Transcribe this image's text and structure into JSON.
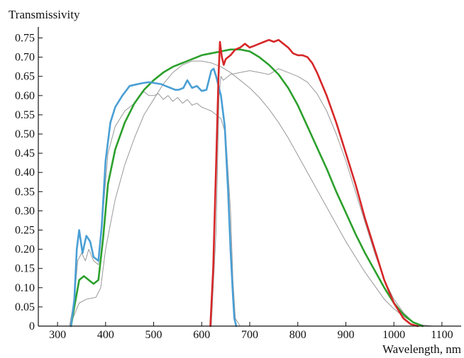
{
  "chart_data": {
    "type": "line",
    "title": "",
    "xlabel": "Wavelength, nm",
    "ylabel": "Transmissivity",
    "xlim": [
      260,
      1140
    ],
    "ylim": [
      0,
      0.775
    ],
    "x_ticks": [
      300,
      400,
      500,
      600,
      700,
      800,
      900,
      1000,
      1100
    ],
    "x_tick_labels": [
      "300",
      "400",
      "500",
      "600",
      "700",
      "800",
      "900",
      "1000",
      "1100"
    ],
    "y_ticks": [
      0,
      0.05,
      0.1,
      0.15,
      0.2,
      0.25,
      0.3,
      0.35,
      0.4,
      0.45,
      0.5,
      0.55,
      0.6,
      0.65,
      0.7,
      0.75
    ],
    "y_tick_labels": [
      "0",
      "0.05",
      "0.10",
      "0.15",
      "0.20",
      "0.25",
      "0.30",
      "0.35",
      "0.40",
      "0.45",
      "0.50",
      "0.55",
      "0.60",
      "0.65",
      "0.70",
      "0.75"
    ],
    "grid": false,
    "legend": "none",
    "series": [
      {
        "color": "#999999",
        "width": 1.0,
        "points": [
          [
            325,
            0
          ],
          [
            335,
            0.03
          ],
          [
            345,
            0.06
          ],
          [
            360,
            0.07
          ],
          [
            380,
            0.075
          ],
          [
            390,
            0.1
          ],
          [
            400,
            0.2
          ],
          [
            420,
            0.33
          ],
          [
            440,
            0.42
          ],
          [
            460,
            0.49
          ],
          [
            480,
            0.55
          ],
          [
            500,
            0.59
          ],
          [
            520,
            0.63
          ],
          [
            540,
            0.66
          ],
          [
            560,
            0.68
          ],
          [
            580,
            0.69
          ],
          [
            600,
            0.69
          ],
          [
            620,
            0.685
          ],
          [
            640,
            0.675
          ],
          [
            660,
            0.66
          ],
          [
            680,
            0.64
          ],
          [
            700,
            0.62
          ],
          [
            720,
            0.595
          ],
          [
            740,
            0.565
          ],
          [
            760,
            0.53
          ],
          [
            780,
            0.49
          ],
          [
            800,
            0.445
          ],
          [
            820,
            0.4
          ],
          [
            840,
            0.355
          ],
          [
            860,
            0.31
          ],
          [
            880,
            0.265
          ],
          [
            900,
            0.22
          ],
          [
            920,
            0.18
          ],
          [
            940,
            0.14
          ],
          [
            960,
            0.105
          ],
          [
            980,
            0.07
          ],
          [
            1000,
            0.045
          ],
          [
            1020,
            0.025
          ],
          [
            1040,
            0.01
          ],
          [
            1060,
            0.003
          ],
          [
            1080,
            0
          ]
        ]
      },
      {
        "color": "#999999",
        "width": 1.0,
        "points": [
          [
            325,
            0
          ],
          [
            335,
            0.07
          ],
          [
            342,
            0.17
          ],
          [
            350,
            0.19
          ],
          [
            358,
            0.17
          ],
          [
            365,
            0.2
          ],
          [
            375,
            0.17
          ],
          [
            385,
            0.16
          ],
          [
            395,
            0.3
          ],
          [
            405,
            0.45
          ],
          [
            420,
            0.52
          ],
          [
            440,
            0.56
          ],
          [
            460,
            0.58
          ],
          [
            470,
            0.6
          ],
          [
            480,
            0.61
          ],
          [
            490,
            0.6
          ],
          [
            500,
            0.6
          ],
          [
            510,
            0.605
          ],
          [
            520,
            0.59
          ],
          [
            530,
            0.6
          ],
          [
            540,
            0.585
          ],
          [
            550,
            0.595
          ],
          [
            560,
            0.58
          ],
          [
            570,
            0.59
          ],
          [
            580,
            0.575
          ],
          [
            590,
            0.58
          ],
          [
            600,
            0.57
          ],
          [
            610,
            0.565
          ],
          [
            620,
            0.56
          ],
          [
            630,
            0.55
          ],
          [
            640,
            0.54
          ],
          [
            650,
            0.5
          ],
          [
            660,
            0.3
          ],
          [
            665,
            0.12
          ],
          [
            670,
            0.02
          ],
          [
            680,
            0
          ]
        ]
      },
      {
        "color": "#999999",
        "width": 1.0,
        "points": [
          [
            620,
            0
          ],
          [
            630,
            0.25
          ],
          [
            636,
            0.6
          ],
          [
            640,
            0.65
          ],
          [
            645,
            0.64
          ],
          [
            650,
            0.645
          ],
          [
            660,
            0.655
          ],
          [
            680,
            0.66
          ],
          [
            700,
            0.665
          ],
          [
            720,
            0.66
          ],
          [
            740,
            0.655
          ],
          [
            760,
            0.67
          ],
          [
            780,
            0.66
          ],
          [
            800,
            0.65
          ],
          [
            820,
            0.635
          ],
          [
            840,
            0.605
          ],
          [
            860,
            0.56
          ],
          [
            880,
            0.5
          ],
          [
            900,
            0.43
          ],
          [
            920,
            0.35
          ],
          [
            940,
            0.27
          ],
          [
            960,
            0.19
          ],
          [
            980,
            0.12
          ],
          [
            1000,
            0.07
          ],
          [
            1020,
            0.035
          ],
          [
            1040,
            0.01
          ],
          [
            1060,
            0
          ]
        ]
      },
      {
        "color": "#2ca02c",
        "width": 2.6,
        "points": [
          [
            328,
            0
          ],
          [
            335,
            0.05
          ],
          [
            345,
            0.12
          ],
          [
            355,
            0.13
          ],
          [
            365,
            0.12
          ],
          [
            375,
            0.11
          ],
          [
            385,
            0.12
          ],
          [
            395,
            0.23
          ],
          [
            405,
            0.37
          ],
          [
            420,
            0.46
          ],
          [
            440,
            0.53
          ],
          [
            460,
            0.58
          ],
          [
            480,
            0.615
          ],
          [
            500,
            0.64
          ],
          [
            520,
            0.66
          ],
          [
            540,
            0.675
          ],
          [
            560,
            0.685
          ],
          [
            580,
            0.695
          ],
          [
            600,
            0.705
          ],
          [
            620,
            0.71
          ],
          [
            640,
            0.715
          ],
          [
            660,
            0.72
          ],
          [
            680,
            0.72
          ],
          [
            700,
            0.715
          ],
          [
            720,
            0.7
          ],
          [
            740,
            0.68
          ],
          [
            760,
            0.655
          ],
          [
            780,
            0.62
          ],
          [
            800,
            0.575
          ],
          [
            820,
            0.52
          ],
          [
            840,
            0.465
          ],
          [
            860,
            0.41
          ],
          [
            880,
            0.35
          ],
          [
            900,
            0.295
          ],
          [
            920,
            0.24
          ],
          [
            940,
            0.19
          ],
          [
            960,
            0.145
          ],
          [
            980,
            0.1
          ],
          [
            1000,
            0.06
          ],
          [
            1020,
            0.03
          ],
          [
            1040,
            0.01
          ],
          [
            1060,
            0
          ]
        ]
      },
      {
        "color": "#4a9fd4",
        "width": 2.6,
        "points": [
          [
            328,
            0
          ],
          [
            335,
            0.07
          ],
          [
            340,
            0.2
          ],
          [
            345,
            0.25
          ],
          [
            352,
            0.19
          ],
          [
            360,
            0.235
          ],
          [
            368,
            0.22
          ],
          [
            375,
            0.18
          ],
          [
            385,
            0.17
          ],
          [
            392,
            0.26
          ],
          [
            400,
            0.43
          ],
          [
            410,
            0.53
          ],
          [
            420,
            0.57
          ],
          [
            435,
            0.6
          ],
          [
            450,
            0.625
          ],
          [
            460,
            0.628
          ],
          [
            475,
            0.632
          ],
          [
            490,
            0.635
          ],
          [
            505,
            0.632
          ],
          [
            515,
            0.63
          ],
          [
            525,
            0.625
          ],
          [
            535,
            0.62
          ],
          [
            545,
            0.615
          ],
          [
            552,
            0.615
          ],
          [
            562,
            0.62
          ],
          [
            570,
            0.64
          ],
          [
            580,
            0.62
          ],
          [
            590,
            0.625
          ],
          [
            600,
            0.612
          ],
          [
            610,
            0.615
          ],
          [
            615,
            0.64
          ],
          [
            620,
            0.665
          ],
          [
            625,
            0.67
          ],
          [
            630,
            0.65
          ],
          [
            640,
            0.6
          ],
          [
            648,
            0.52
          ],
          [
            655,
            0.35
          ],
          [
            660,
            0.2
          ],
          [
            665,
            0.08
          ],
          [
            668,
            0.02
          ],
          [
            672,
            0
          ]
        ]
      },
      {
        "color": "#d62728",
        "width": 2.6,
        "points": [
          [
            618,
            0
          ],
          [
            624,
            0.15
          ],
          [
            630,
            0.42
          ],
          [
            635,
            0.65
          ],
          [
            638,
            0.74
          ],
          [
            642,
            0.7
          ],
          [
            646,
            0.68
          ],
          [
            650,
            0.695
          ],
          [
            660,
            0.705
          ],
          [
            670,
            0.72
          ],
          [
            680,
            0.725
          ],
          [
            690,
            0.735
          ],
          [
            700,
            0.725
          ],
          [
            710,
            0.73
          ],
          [
            720,
            0.735
          ],
          [
            730,
            0.74
          ],
          [
            740,
            0.745
          ],
          [
            750,
            0.74
          ],
          [
            760,
            0.745
          ],
          [
            770,
            0.735
          ],
          [
            780,
            0.725
          ],
          [
            790,
            0.71
          ],
          [
            800,
            0.705
          ],
          [
            810,
            0.705
          ],
          [
            820,
            0.7
          ],
          [
            830,
            0.685
          ],
          [
            840,
            0.66
          ],
          [
            860,
            0.6
          ],
          [
            880,
            0.53
          ],
          [
            900,
            0.45
          ],
          [
            920,
            0.37
          ],
          [
            940,
            0.28
          ],
          [
            960,
            0.2
          ],
          [
            980,
            0.12
          ],
          [
            1000,
            0.06
          ],
          [
            1020,
            0.02
          ],
          [
            1035,
            0.005
          ],
          [
            1050,
            0
          ]
        ]
      }
    ]
  }
}
